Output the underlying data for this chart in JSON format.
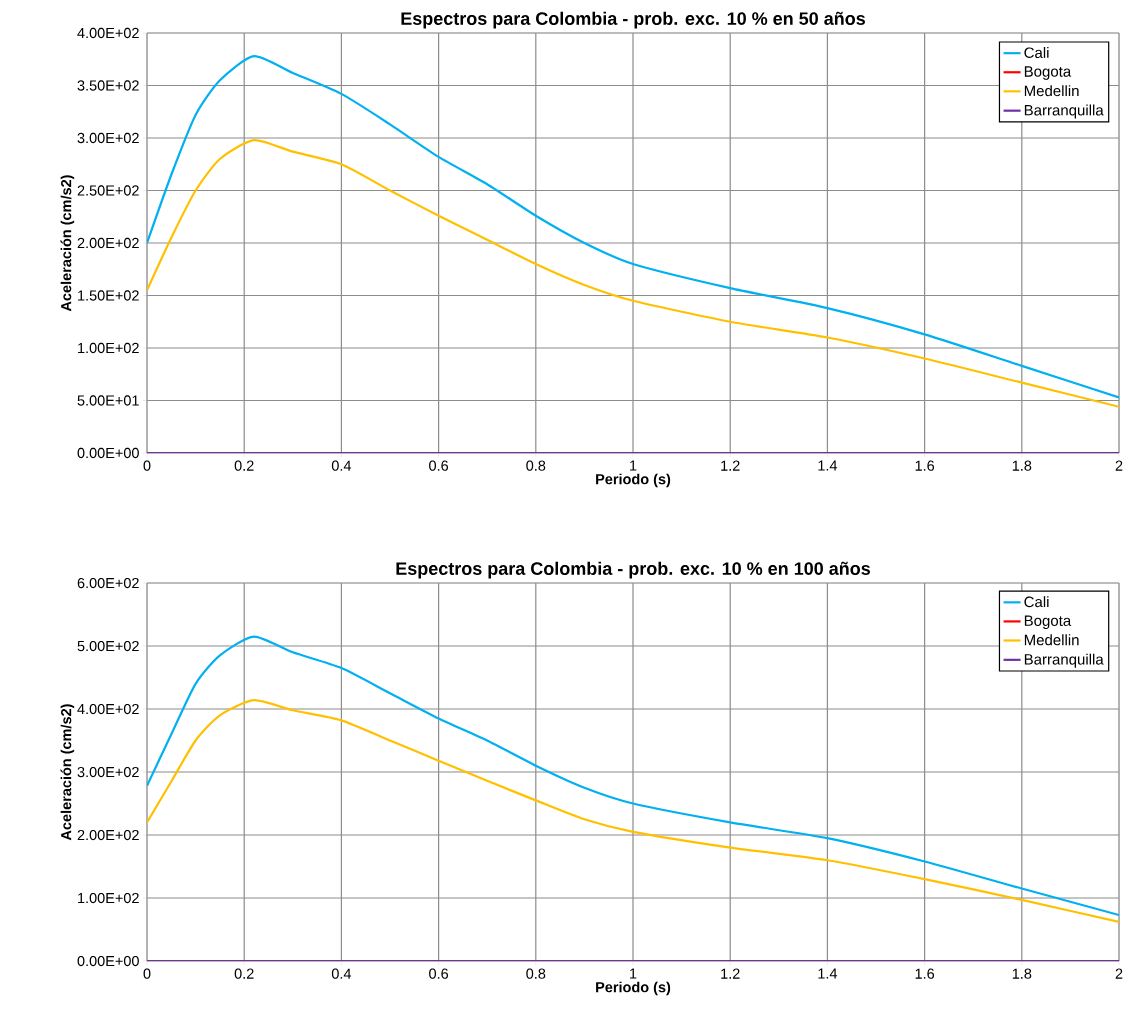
{
  "chart_data": [
    {
      "type": "line",
      "title": "Espectros para Colombia - prob. exc. 10 % en 50 años",
      "xlabel": "Periodo (s)",
      "ylabel": "Aceleración (cm/s2)",
      "x": [
        0,
        0.05,
        0.1,
        0.15,
        0.22,
        0.3,
        0.4,
        0.5,
        0.6,
        0.7,
        0.8,
        0.9,
        1.0,
        1.2,
        1.4,
        1.6,
        1.8,
        2.0
      ],
      "series": [
        {
          "name": "Cali",
          "color": "#00b0f0",
          "values": [
            200,
            265,
            322,
            355,
            378,
            362,
            342,
            313,
            282,
            256,
            226,
            200,
            180,
            157,
            138,
            113,
            83,
            53
          ]
        },
        {
          "name": "Bogota",
          "color": "#ff0000",
          "values": [
            null,
            null,
            null,
            null,
            null,
            null,
            null,
            null,
            null,
            null,
            null,
            null,
            null,
            null,
            null,
            null,
            null,
            null
          ]
        },
        {
          "name": "Medellin",
          "color": "#ffc000",
          "values": [
            155,
            205,
            250,
            280,
            298,
            287,
            275,
            250,
            226,
            203,
            180,
            160,
            145,
            125,
            110,
            90,
            67,
            44
          ]
        },
        {
          "name": "Barranquilla",
          "color": "#7030a0",
          "values": [
            0,
            0,
            0,
            0,
            0,
            0,
            0,
            0,
            0,
            0,
            0,
            0,
            0,
            0,
            0,
            0,
            0,
            0
          ]
        }
      ],
      "xlim": [
        0,
        2
      ],
      "xticks": [
        0,
        0.2,
        0.4,
        0.6,
        0.8,
        1,
        1.2,
        1.4,
        1.6,
        1.8,
        2
      ],
      "ylim": [
        0,
        400
      ],
      "yticks": [
        {
          "value": 0,
          "label": "0.00E+00"
        },
        {
          "value": 50,
          "label": "5.00E+01"
        },
        {
          "value": 100,
          "label": "1.00E+02"
        },
        {
          "value": 150,
          "label": "1.50E+02"
        },
        {
          "value": 200,
          "label": "2.00E+02"
        },
        {
          "value": 250,
          "label": "2.50E+02"
        },
        {
          "value": 300,
          "label": "3.00E+02"
        },
        {
          "value": 350,
          "label": "3.50E+02"
        },
        {
          "value": 400,
          "label": "4.00E+02"
        }
      ],
      "grid": true,
      "legend": "top right"
    },
    {
      "type": "line",
      "title": "Espectros para Colombia - prob. exc. 10 % en 100 años",
      "xlabel": "Periodo (s)",
      "ylabel": "Aceleración (cm/s2)",
      "x": [
        0,
        0.05,
        0.1,
        0.15,
        0.22,
        0.3,
        0.4,
        0.5,
        0.6,
        0.7,
        0.8,
        0.9,
        1.0,
        1.2,
        1.4,
        1.6,
        1.8,
        2.0
      ],
      "series": [
        {
          "name": "Cali",
          "color": "#00b0f0",
          "values": [
            278,
            360,
            440,
            485,
            515,
            490,
            465,
            425,
            385,
            350,
            310,
            275,
            250,
            220,
            195,
            158,
            115,
            73
          ]
        },
        {
          "name": "Bogota",
          "color": "#ff0000",
          "values": [
            null,
            null,
            null,
            null,
            null,
            null,
            null,
            null,
            null,
            null,
            null,
            null,
            null,
            null,
            null,
            null,
            null,
            null
          ]
        },
        {
          "name": "Medellin",
          "color": "#ffc000",
          "values": [
            220,
            285,
            350,
            390,
            414,
            398,
            382,
            350,
            318,
            286,
            255,
            225,
            205,
            180,
            160,
            130,
            97,
            62
          ]
        },
        {
          "name": "Barranquilla",
          "color": "#7030a0",
          "values": [
            0,
            0,
            0,
            0,
            0,
            0,
            0,
            0,
            0,
            0,
            0,
            0,
            0,
            0,
            0,
            0,
            0,
            0
          ]
        }
      ],
      "xlim": [
        0,
        2
      ],
      "xticks": [
        0,
        0.2,
        0.4,
        0.6,
        0.8,
        1,
        1.2,
        1.4,
        1.6,
        1.8,
        2
      ],
      "ylim": [
        0,
        600
      ],
      "yticks": [
        {
          "value": 0,
          "label": "0.00E+00"
        },
        {
          "value": 100,
          "label": "1.00E+02"
        },
        {
          "value": 200,
          "label": "2.00E+02"
        },
        {
          "value": 300,
          "label": "3.00E+02"
        },
        {
          "value": 400,
          "label": "4.00E+02"
        },
        {
          "value": 500,
          "label": "5.00E+02"
        },
        {
          "value": 600,
          "label": "6.00E+02"
        }
      ],
      "grid": true,
      "legend": "top right"
    }
  ]
}
